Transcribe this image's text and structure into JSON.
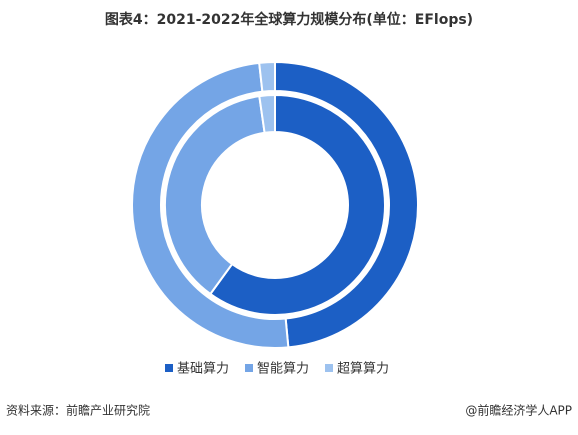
{
  "chart_data": {
    "type": "pie",
    "title": "图表4：2021-2022年全球算力规模分布(单位：EFlops)",
    "categories": [
      "基础算力",
      "智能算力",
      "超算算力"
    ],
    "colors": [
      "#1c5fc5",
      "#74a5e6",
      "#9dc2ef"
    ],
    "rings": [
      {
        "values": [
          440,
          451,
          16
        ]
      },
      {
        "values": [
          369,
          232,
          14
        ]
      }
    ]
  },
  "footer": {
    "source": "资料来源：前瞻产业研究院",
    "brand": "@前瞻经济学人APP"
  }
}
